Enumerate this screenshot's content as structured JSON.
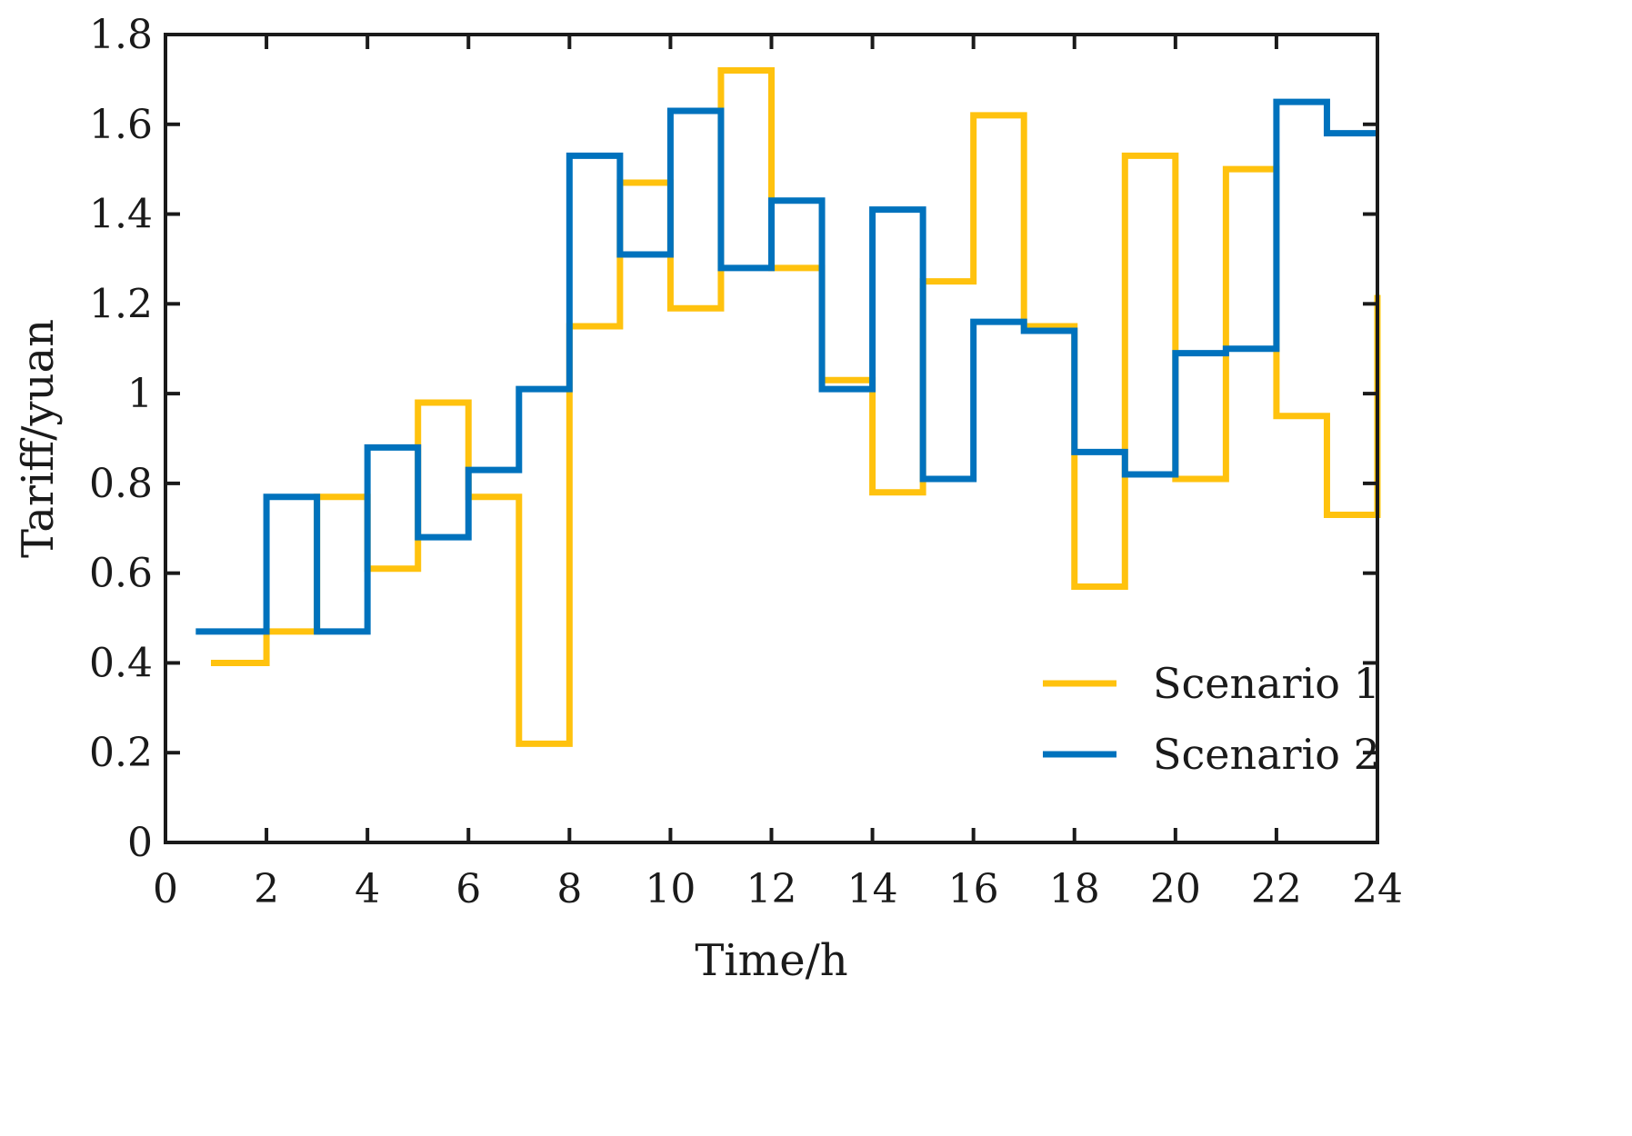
{
  "chart_data": {
    "type": "line",
    "subtype": "step",
    "title": "",
    "xlabel": "Time/h",
    "ylabel": "Tariff/yuan",
    "xlim": [
      0,
      24
    ],
    "ylim": [
      0,
      1.8
    ],
    "xticks": [
      0,
      2,
      4,
      6,
      8,
      10,
      12,
      14,
      16,
      18,
      20,
      22,
      24
    ],
    "yticks": [
      0,
      0.2,
      0.4,
      0.6,
      0.8,
      1,
      1.2,
      1.4,
      1.6,
      1.8
    ],
    "xtick_labels": [
      "0",
      "2",
      "4",
      "6",
      "8",
      "10",
      "12",
      "14",
      "16",
      "18",
      "20",
      "22",
      "24"
    ],
    "ytick_labels": [
      "0",
      "0.2",
      "0.4",
      "0.6",
      "0.8",
      "1",
      "1.2",
      "1.4",
      "1.6",
      "1.8"
    ],
    "grid": false,
    "legend_position": "bottom-right",
    "series": [
      {
        "name": "Scenario 1",
        "color": "#FFC20E",
        "breaks": [
          0.9,
          2,
          3,
          4,
          5,
          6,
          7,
          8,
          9,
          10,
          11,
          12,
          13,
          14,
          15,
          16,
          17,
          18,
          19,
          20,
          21,
          22,
          23,
          24
        ],
        "values": [
          0.4,
          0.47,
          0.77,
          0.61,
          0.98,
          0.77,
          0.22,
          1.15,
          1.47,
          1.19,
          1.72,
          1.28,
          1.03,
          0.78,
          1.25,
          1.62,
          1.15,
          0.57,
          1.53,
          0.81,
          1.5,
          0.95,
          0.73
        ],
        "end_value": 1.22
      },
      {
        "name": "Scenario 2",
        "color": "#0072BD",
        "breaks": [
          0.6,
          2,
          3,
          4,
          5,
          6,
          7,
          8,
          9,
          10,
          11,
          12,
          13,
          14,
          15,
          16,
          17,
          18,
          19,
          20,
          21,
          22,
          23,
          24
        ],
        "values": [
          0.47,
          0.77,
          0.47,
          0.88,
          0.68,
          0.83,
          1.01,
          1.53,
          1.31,
          1.63,
          1.28,
          1.43,
          1.01,
          1.41,
          0.81,
          1.16,
          1.14,
          0.87,
          0.82,
          1.09,
          1.1,
          1.65,
          1.58
        ],
        "end_value": 1.58
      }
    ]
  }
}
